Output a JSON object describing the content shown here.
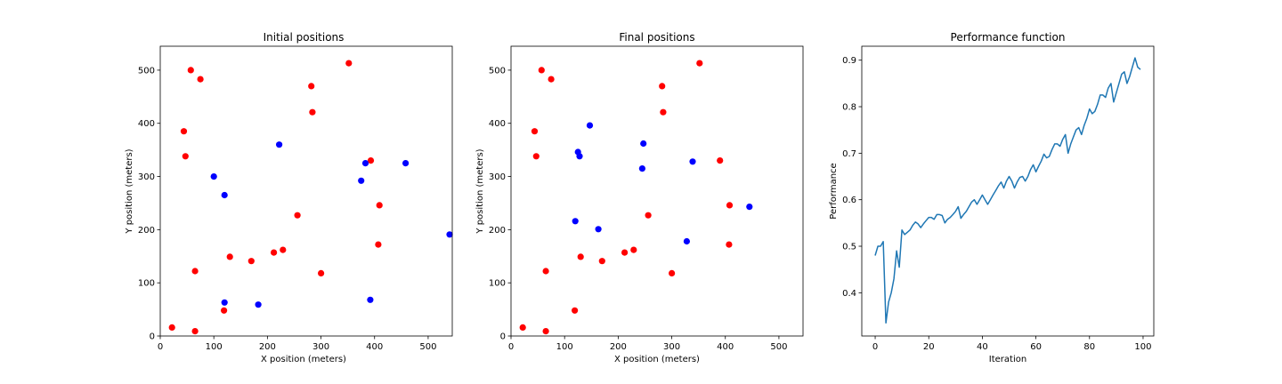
{
  "colors": {
    "red": "#ff0000",
    "blue": "#0000ff",
    "line": "#1f77b4",
    "axis": "#000000"
  },
  "chart_data": [
    {
      "type": "scatter",
      "title": "Initial positions",
      "xlabel": "X position (meters)",
      "ylabel": "Y position (meters)",
      "xlim": [
        0,
        545
      ],
      "ylim": [
        0,
        545
      ],
      "xticks": [
        0,
        100,
        200,
        300,
        400,
        500
      ],
      "yticks": [
        0,
        100,
        200,
        300,
        400,
        500
      ],
      "series": [
        {
          "color": "red",
          "points": [
            [
              57,
              500
            ],
            [
              75,
              483
            ],
            [
              44,
              385
            ],
            [
              47,
              338
            ],
            [
              352,
              513
            ],
            [
              282,
              470
            ],
            [
              284,
              421
            ],
            [
              393,
              330
            ],
            [
              409,
              246
            ],
            [
              407,
              172
            ],
            [
              256,
              227
            ],
            [
              300,
              118
            ],
            [
              229,
              162
            ],
            [
              212,
              157
            ],
            [
              170,
              141
            ],
            [
              130,
              149
            ],
            [
              65,
              122
            ],
            [
              119,
              48
            ],
            [
              22,
              16
            ],
            [
              65,
              9
            ]
          ]
        },
        {
          "color": "blue",
          "points": [
            [
              222,
              360
            ],
            [
              100,
              300
            ],
            [
              120,
              265
            ],
            [
              383,
              325
            ],
            [
              375,
              292
            ],
            [
              458,
              325
            ],
            [
              540,
              191
            ],
            [
              120,
              63
            ],
            [
              183,
              59
            ],
            [
              392,
              68
            ]
          ]
        }
      ]
    },
    {
      "type": "scatter",
      "title": "Final positions",
      "xlabel": "X position (meters)",
      "ylabel": "Y position (meters)",
      "xlim": [
        0,
        545
      ],
      "ylim": [
        0,
        545
      ],
      "xticks": [
        0,
        100,
        200,
        300,
        400,
        500
      ],
      "yticks": [
        0,
        100,
        200,
        300,
        400,
        500
      ],
      "series": [
        {
          "color": "red",
          "points": [
            [
              57,
              500
            ],
            [
              75,
              483
            ],
            [
              44,
              385
            ],
            [
              47,
              338
            ],
            [
              352,
              513
            ],
            [
              282,
              470
            ],
            [
              284,
              421
            ],
            [
              390,
              330
            ],
            [
              408,
              246
            ],
            [
              407,
              172
            ],
            [
              256,
              227
            ],
            [
              300,
              118
            ],
            [
              229,
              162
            ],
            [
              212,
              157
            ],
            [
              170,
              141
            ],
            [
              130,
              149
            ],
            [
              65,
              122
            ],
            [
              119,
              48
            ],
            [
              22,
              16
            ],
            [
              65,
              9
            ]
          ]
        },
        {
          "color": "blue",
          "points": [
            [
              147,
              396
            ],
            [
              125,
              346
            ],
            [
              128,
              338
            ],
            [
              247,
              362
            ],
            [
              245,
              315
            ],
            [
              339,
              328
            ],
            [
              445,
              243
            ],
            [
              120,
              216
            ],
            [
              163,
              201
            ],
            [
              328,
              178
            ]
          ]
        }
      ]
    },
    {
      "type": "line",
      "title": "Performance function",
      "xlabel": "Iteration",
      "ylabel": "Performance",
      "xlim": [
        -5,
        104
      ],
      "ylim": [
        0.307,
        0.93
      ],
      "xticks": [
        0,
        20,
        40,
        60,
        80,
        100
      ],
      "yticks": [
        0.4,
        0.5,
        0.6,
        0.7,
        0.8,
        0.9
      ],
      "x": [
        0,
        1,
        2,
        3,
        4,
        5,
        6,
        7,
        8,
        9,
        10,
        11,
        12,
        13,
        14,
        15,
        16,
        17,
        18,
        19,
        20,
        21,
        22,
        23,
        24,
        25,
        26,
        27,
        28,
        29,
        30,
        31,
        32,
        33,
        34,
        35,
        36,
        37,
        38,
        39,
        40,
        41,
        42,
        43,
        44,
        45,
        46,
        47,
        48,
        49,
        50,
        51,
        52,
        53,
        54,
        55,
        56,
        57,
        58,
        59,
        60,
        61,
        62,
        63,
        64,
        65,
        66,
        67,
        68,
        69,
        70,
        71,
        72,
        73,
        74,
        75,
        76,
        77,
        78,
        79,
        80,
        81,
        82,
        83,
        84,
        85,
        86,
        87,
        88,
        89,
        90,
        91,
        92,
        93,
        94,
        95,
        96,
        97,
        98,
        99
      ],
      "y": [
        0.48,
        0.5,
        0.5,
        0.51,
        0.335,
        0.38,
        0.4,
        0.43,
        0.49,
        0.455,
        0.535,
        0.525,
        0.53,
        0.535,
        0.545,
        0.552,
        0.548,
        0.54,
        0.548,
        0.555,
        0.562,
        0.562,
        0.558,
        0.568,
        0.568,
        0.566,
        0.55,
        0.558,
        0.562,
        0.568,
        0.575,
        0.585,
        0.56,
        0.568,
        0.575,
        0.585,
        0.595,
        0.6,
        0.59,
        0.6,
        0.61,
        0.6,
        0.59,
        0.6,
        0.61,
        0.62,
        0.63,
        0.638,
        0.625,
        0.64,
        0.65,
        0.64,
        0.625,
        0.638,
        0.648,
        0.65,
        0.64,
        0.65,
        0.665,
        0.675,
        0.66,
        0.672,
        0.683,
        0.698,
        0.69,
        0.693,
        0.708,
        0.72,
        0.72,
        0.715,
        0.73,
        0.74,
        0.7,
        0.72,
        0.735,
        0.75,
        0.755,
        0.74,
        0.76,
        0.775,
        0.795,
        0.785,
        0.79,
        0.805,
        0.825,
        0.825,
        0.82,
        0.84,
        0.85,
        0.81,
        0.83,
        0.85,
        0.87,
        0.875,
        0.85,
        0.865,
        0.885,
        0.905,
        0.885,
        0.88
      ]
    }
  ]
}
